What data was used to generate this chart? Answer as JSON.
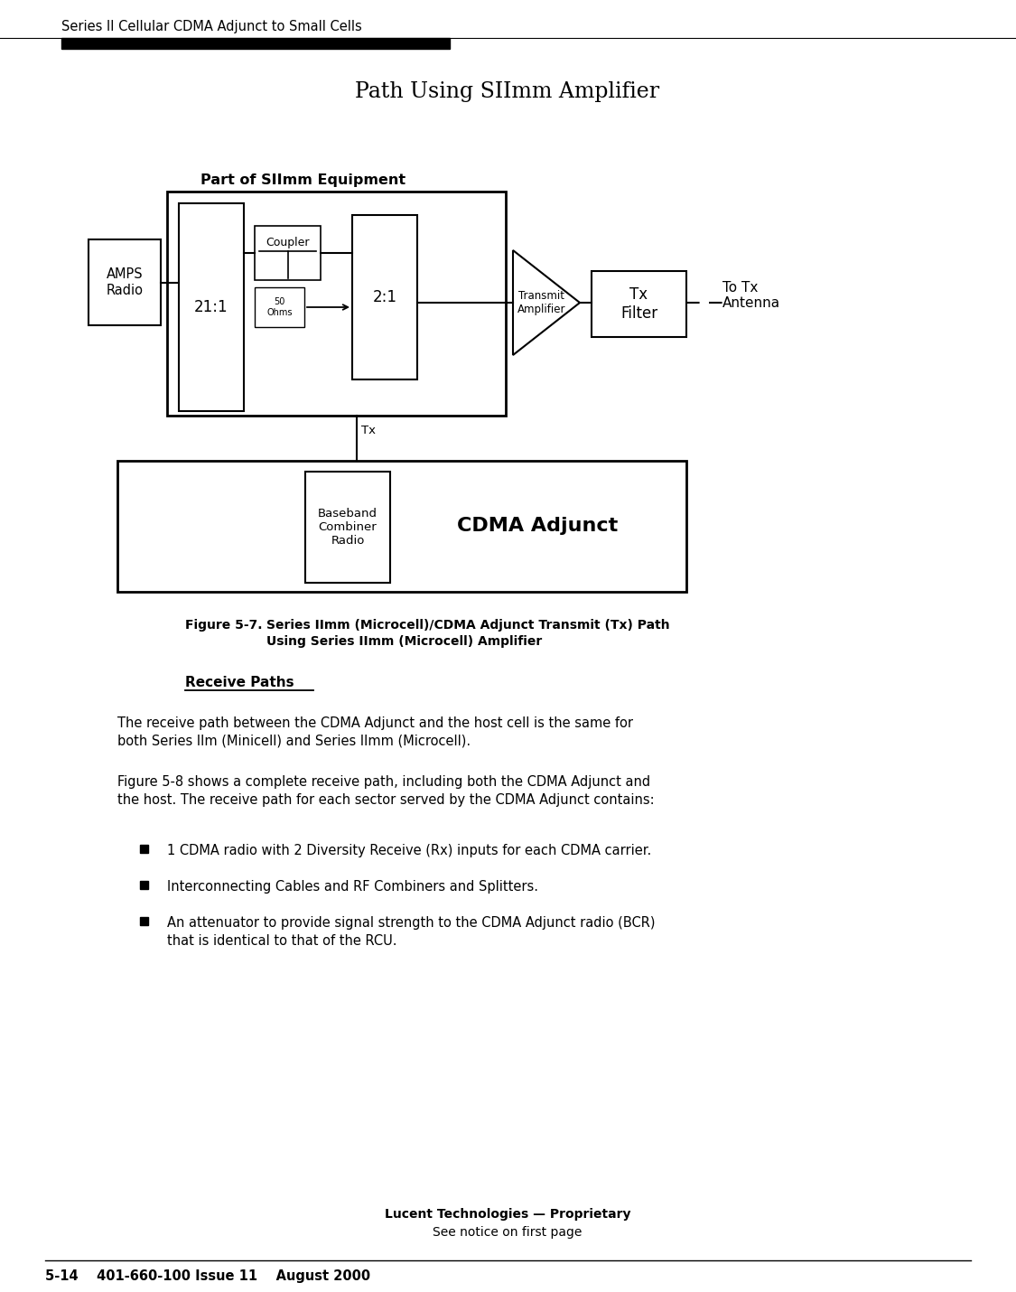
{
  "page_title": "Series II Cellular CDMA Adjunct to Small Cells",
  "diagram_title": "Path Using SIImm Amplifier",
  "background_color": "#ffffff",
  "footer_line1": "Lucent Technologies — Proprietary",
  "footer_line2": "See notice on first page",
  "footer_bottom": "5-14    401-660-100 Issue 11    August 2000",
  "body_text1": "The receive path between the CDMA Adjunct and the host cell is the same for\nboth Series IIm (Minicell) and Series IImm (Microcell).",
  "body_text2": "Figure 5-8 shows a complete receive path, including both the CDMA Adjunct and\nthe host. The receive path for each sector served by the CDMA Adjunct contains:",
  "bullet1": "1 CDMA radio with 2 Diversity Receive (Rx) inputs for each CDMA carrier.",
  "bullet2": "Interconnecting Cables and RF Combiners and Splitters.",
  "bullet3": "An attenuator to provide signal strength to the CDMA Adjunct radio (BCR)\nthat is identical to that of the RCU."
}
